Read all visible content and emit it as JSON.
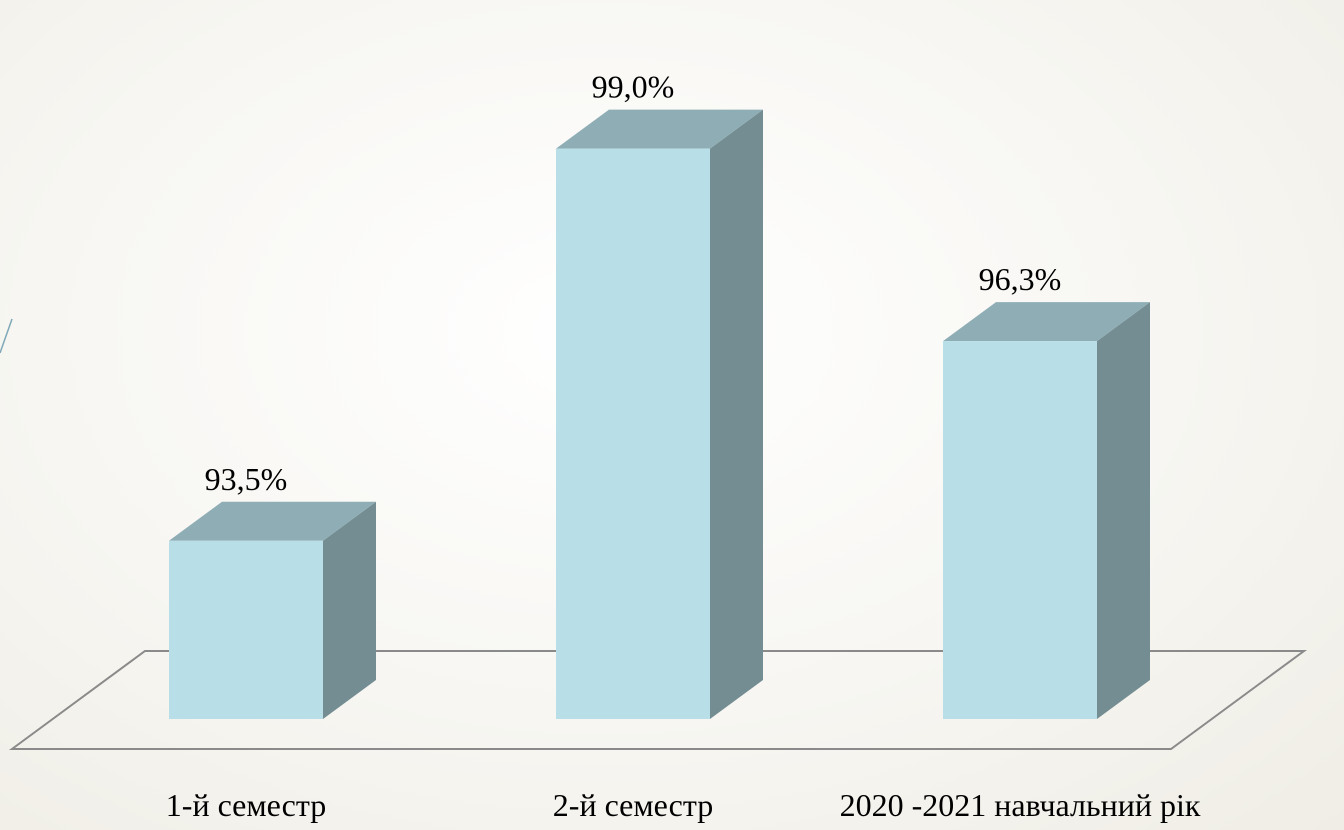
{
  "chart_data": {
    "type": "bar",
    "style": "3d-column",
    "categories": [
      "1-й семестр",
      "2-й семестр",
      "2020 -2021 навчальний рік"
    ],
    "values": [
      93.5,
      99.0,
      96.3
    ],
    "data_labels": [
      "93,5%",
      "99,0%",
      "96,3%"
    ],
    "title": "",
    "xlabel": "",
    "ylabel": "",
    "ylim": [
      91.0,
      100.0
    ],
    "grid": false,
    "legend": "none",
    "colors": {
      "front": "#b8dfe8",
      "top": "#8eadb5",
      "side": "#748d93",
      "floor_stroke": "#8a8a8a"
    }
  }
}
